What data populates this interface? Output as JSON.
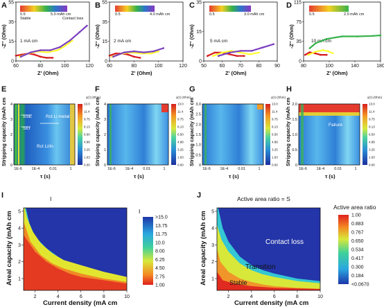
{
  "panels": {
    "A": {
      "label": "A",
      "scale_low": "0.5",
      "scale_high": "5.0 mAh cm",
      "left_note": "Stable",
      "right_note": "Contact loss",
      "note": "1 mA cm",
      "xlabel": "Z' (Ohm)",
      "ylabel": "-Z'' (Ohm)"
    },
    "B": {
      "label": "B",
      "scale_low": "0.5",
      "scale_high": "4.0 mAh cm",
      "note": "2 mA cm",
      "xlabel": "Z' (Ohm)",
      "ylabel": "-Z'' (Ohm)"
    },
    "C": {
      "label": "C",
      "scale_low": "0.5",
      "scale_high": "3.0 mAh cm",
      "note": "5 mA cm",
      "xlabel": "Z' (Ohm)",
      "ylabel": "-Z'' (Ohm)"
    },
    "D": {
      "label": "D",
      "scale_low": "0.5",
      "scale_high": "2.0 mAh cm",
      "note": "10 mA cm",
      "xlabel": "Z' (Ohm)",
      "ylabel": "-Z'' (Ohm)"
    },
    "E": {
      "label": "E",
      "ann_sse": "SSE",
      "ann_sei": "SEI",
      "ann_rct_li_metal": "Rct Li metal",
      "ann_rct_li_in": "Rct Li/In",
      "xlabel": "τ (s)",
      "ylabel": "Stripping capacity (mAh cm",
      "cbar_title": "γ(τ) (Ohm)"
    },
    "F": {
      "label": "F",
      "xlabel": "τ (s)",
      "ylabel": "Stripping capacity (mAh cm",
      "cbar_title": "γ(τ) (Ohm)"
    },
    "G": {
      "label": "G",
      "xlabel": "τ (s)",
      "ylabel": "Stripping capacity (mAh cm",
      "cbar_title": "γ(τ) (Ohm)"
    },
    "H": {
      "label": "H",
      "ann_failure": "Failure",
      "xlabel": "τ (s)",
      "ylabel": "Stripping capacity (mAh cm",
      "cbar_title": "γ(τ) (Ohm)"
    },
    "I": {
      "label": "I",
      "title": "I",
      "xlabel": "Current density (mA cm",
      "ylabel": "Areal capacity (mAh cm",
      "cbar_title": "I"
    },
    "J": {
      "label": "J",
      "title": "Active area ratio = S",
      "xlabel": "Current density (mA cm",
      "ylabel": "Areal capacity (mAh cm",
      "cbar_title": "Active area ratio",
      "region_contact_loss": "Contact loss",
      "region_transition": "Transition",
      "region_stable": "Stable"
    }
  },
  "colors": {
    "low": "#d7191c",
    "mid": "#ffff33",
    "high": "#2b83ba",
    "purple": "#7b3fbf"
  },
  "chart_data": [
    {
      "id": "A",
      "type": "line",
      "xlabel": "Z' (Ohm)",
      "ylabel": "-Z'' (Ohm)",
      "xlim": [
        60,
        120
      ],
      "ylim": [
        0,
        55
      ],
      "xticks": [
        "60",
        "80",
        "100",
        "120"
      ],
      "yticks": [
        "0",
        "15",
        "35",
        "55"
      ],
      "series": [
        {
          "x": [
            60,
            65,
            70,
            75,
            80,
            85,
            90
          ],
          "y": [
            5,
            6,
            7,
            6,
            4,
            3,
            3
          ]
        },
        {
          "x": [
            63,
            70,
            78,
            86,
            94,
            100,
            106
          ],
          "y": [
            4,
            7,
            9,
            8,
            10,
            14,
            19
          ]
        },
        {
          "x": [
            64,
            72,
            80,
            88,
            96,
            104,
            112,
            118
          ],
          "y": [
            4,
            8,
            10,
            10,
            13,
            19,
            27,
            33
          ]
        }
      ]
    },
    {
      "id": "B",
      "type": "line",
      "xlabel": "Z' (Ohm)",
      "ylabel": "-Z'' (Ohm)",
      "xlim": [
        60,
        120
      ],
      "ylim": [
        0,
        55
      ],
      "xticks": [
        "60",
        "80",
        "100",
        "120"
      ],
      "yticks": [
        "0",
        "15",
        "35",
        "55"
      ],
      "series": [
        {
          "x": [
            60,
            65,
            70,
            75,
            80,
            85
          ],
          "y": [
            5,
            7,
            7,
            6,
            4,
            3
          ]
        },
        {
          "x": [
            62,
            70,
            78,
            86,
            94,
            100
          ],
          "y": [
            4,
            7,
            8,
            7,
            7,
            9
          ]
        },
        {
          "x": [
            63,
            72,
            80,
            88,
            96,
            104
          ],
          "y": [
            4,
            8,
            9,
            8,
            9,
            12
          ]
        }
      ]
    },
    {
      "id": "C",
      "type": "line",
      "xlabel": "Z' (Ohm)",
      "ylabel": "-Z'' (Ohm)",
      "xlim": [
        50,
        90
      ],
      "ylim": [
        0,
        35
      ],
      "xticks": [
        "50",
        "60",
        "70",
        "80",
        "90"
      ],
      "yticks": [
        "0",
        "15",
        "35"
      ],
      "series": [
        {
          "x": [
            52,
            56,
            60,
            64,
            68,
            72
          ],
          "y": [
            3,
            5,
            5,
            4,
            3,
            3
          ]
        },
        {
          "x": [
            55,
            60,
            65,
            70,
            75,
            80
          ],
          "y": [
            3,
            5,
            6,
            5,
            4,
            5
          ]
        },
        {
          "x": [
            58,
            64,
            70,
            76,
            82,
            88
          ],
          "y": [
            3,
            5,
            6,
            6,
            8,
            10
          ]
        }
      ]
    },
    {
      "id": "D",
      "type": "line",
      "xlabel": "Z' (Ohm)",
      "ylabel": "-Z'' (Ohm)",
      "xlim": [
        80,
        180
      ],
      "ylim": [
        0,
        115
      ],
      "xticks": [
        "80",
        "100",
        "140",
        "180"
      ],
      "yticks": [
        "0",
        "35",
        "75",
        "115"
      ],
      "series": [
        {
          "x": [
            82,
            88,
            95,
            102,
            110
          ],
          "y": [
            12,
            17,
            15,
            12,
            12
          ]
        },
        {
          "x": [
            86,
            95,
            105,
            112,
            118
          ],
          "y": [
            12,
            18,
            21,
            19,
            15
          ]
        },
        {
          "x": [
            88,
            96,
            110,
            130,
            150,
            170,
            180
          ],
          "y": [
            25,
            35,
            43,
            48,
            48,
            49,
            50
          ]
        }
      ]
    },
    {
      "id": "E",
      "type": "heatmap",
      "xlabel": "τ (s)",
      "ylabel": "Stripping capacity (mAh cm",
      "xticks": [
        "1E-6",
        "1E-4",
        "0.01",
        "1"
      ],
      "yticks": [
        "0",
        "1",
        "2",
        "3",
        "4"
      ],
      "colorbar_ticks": [
        "0.00",
        "1.63",
        "3.25",
        "4.88",
        "6.50",
        "8.13",
        "9.75",
        "11.4",
        "13.0"
      ]
    },
    {
      "id": "F",
      "type": "heatmap",
      "xlabel": "τ (s)",
      "ylabel": "Stripping capacity (mAh cm",
      "xticks": [
        "1E-6",
        "1E-4",
        "0.01",
        "1"
      ],
      "yticks": [
        "0",
        "1",
        "2",
        "3",
        "4"
      ],
      "colorbar_ticks": [
        "0.00",
        "1.63",
        "3.25",
        "4.88",
        "6.50",
        "8.13",
        "9.75",
        "11.4",
        "13.0"
      ]
    },
    {
      "id": "G",
      "type": "heatmap",
      "xlabel": "τ (s)",
      "ylabel": "Stripping capacity (mAh cm",
      "xticks": [
        "1E-6",
        "1E-4",
        "0.01",
        "1"
      ],
      "yticks": [
        "0",
        "0.5",
        "1.0",
        "1.5",
        "2.0",
        "2.5",
        "3.0"
      ],
      "colorbar_ticks": [
        "0.00",
        "1.63",
        "3.25",
        "4.88",
        "6.50",
        "8.13",
        "9.75",
        "11.4",
        "13.0"
      ]
    },
    {
      "id": "H",
      "type": "heatmap",
      "xlabel": "τ (s)",
      "ylabel": "Stripping capacity (mAh cm",
      "xticks": [
        "1E-6",
        "1E-4",
        "0.01",
        "1"
      ],
      "yticks": [
        "0",
        "0.5",
        "1.0",
        "1.5",
        "2.0"
      ],
      "colorbar_ticks": [
        "0.00",
        "1.63",
        "3.25",
        "4.88",
        "6.50",
        "8.13",
        "9.75",
        "11.4",
        "13.0"
      ]
    },
    {
      "id": "I",
      "type": "heatmap",
      "xlabel": "Current density (mA cm",
      "ylabel": "Areal capacity (mAh cm",
      "xlim": [
        1,
        10
      ],
      "ylim": [
        0.3,
        5.2
      ],
      "xticks": [
        "2",
        "4",
        "6",
        "8",
        "10"
      ],
      "yticks": [
        "1",
        "2",
        "3",
        "4",
        "5"
      ],
      "colorbar_ticks": [
        ">15.0",
        "13.75",
        "11.75",
        "10.0",
        "8.00",
        "6.25",
        "4.50",
        "2.75",
        "1.00"
      ],
      "boundaries": [
        {
          "level": "high",
          "x": [
            1.2,
            1.5,
            2.0,
            3.0,
            4.0,
            5.0,
            6.0,
            8.0,
            10.0
          ],
          "y": [
            5.2,
            4.3,
            3.5,
            2.8,
            2.3,
            1.9,
            1.6,
            1.2,
            1.0
          ]
        },
        {
          "level": "mid",
          "x": [
            1.1,
            1.3,
            1.8,
            2.5,
            3.5,
            4.5,
            6.0,
            8.0,
            10.0
          ],
          "y": [
            5.2,
            4.6,
            3.8,
            3.1,
            2.5,
            2.1,
            1.8,
            1.4,
            1.1
          ]
        }
      ]
    },
    {
      "id": "J",
      "type": "heatmap",
      "xlabel": "Current density (mA cm",
      "ylabel": "Areal capacity (mAh cm",
      "xlim": [
        1,
        10
      ],
      "ylim": [
        0.3,
        5.2
      ],
      "xticks": [
        "2",
        "4",
        "6",
        "8",
        "10"
      ],
      "yticks": [
        "1",
        "2",
        "3",
        "4",
        "5"
      ],
      "colorbar_ticks": [
        "1.00",
        "0.883",
        "0.767",
        "0.650",
        "0.534",
        "0.417",
        "0.300",
        "0.184",
        "<0.0670"
      ],
      "boundaries": [
        {
          "level": "transition",
          "x": [
            1.1,
            1.5,
            2.0,
            3.0,
            4.0,
            5.0,
            6.0,
            8.0,
            10.0
          ],
          "y": [
            5.2,
            4.0,
            3.2,
            2.3,
            1.8,
            1.5,
            1.3,
            1.0,
            0.85
          ]
        },
        {
          "level": "stable",
          "x": [
            1.0,
            1.3,
            2.0,
            3.0,
            4.0,
            5.0,
            6.0,
            8.0,
            10.0
          ],
          "y": [
            2.8,
            2.0,
            1.4,
            1.0,
            0.8,
            0.65,
            0.55,
            0.45,
            0.4
          ]
        }
      ]
    }
  ]
}
